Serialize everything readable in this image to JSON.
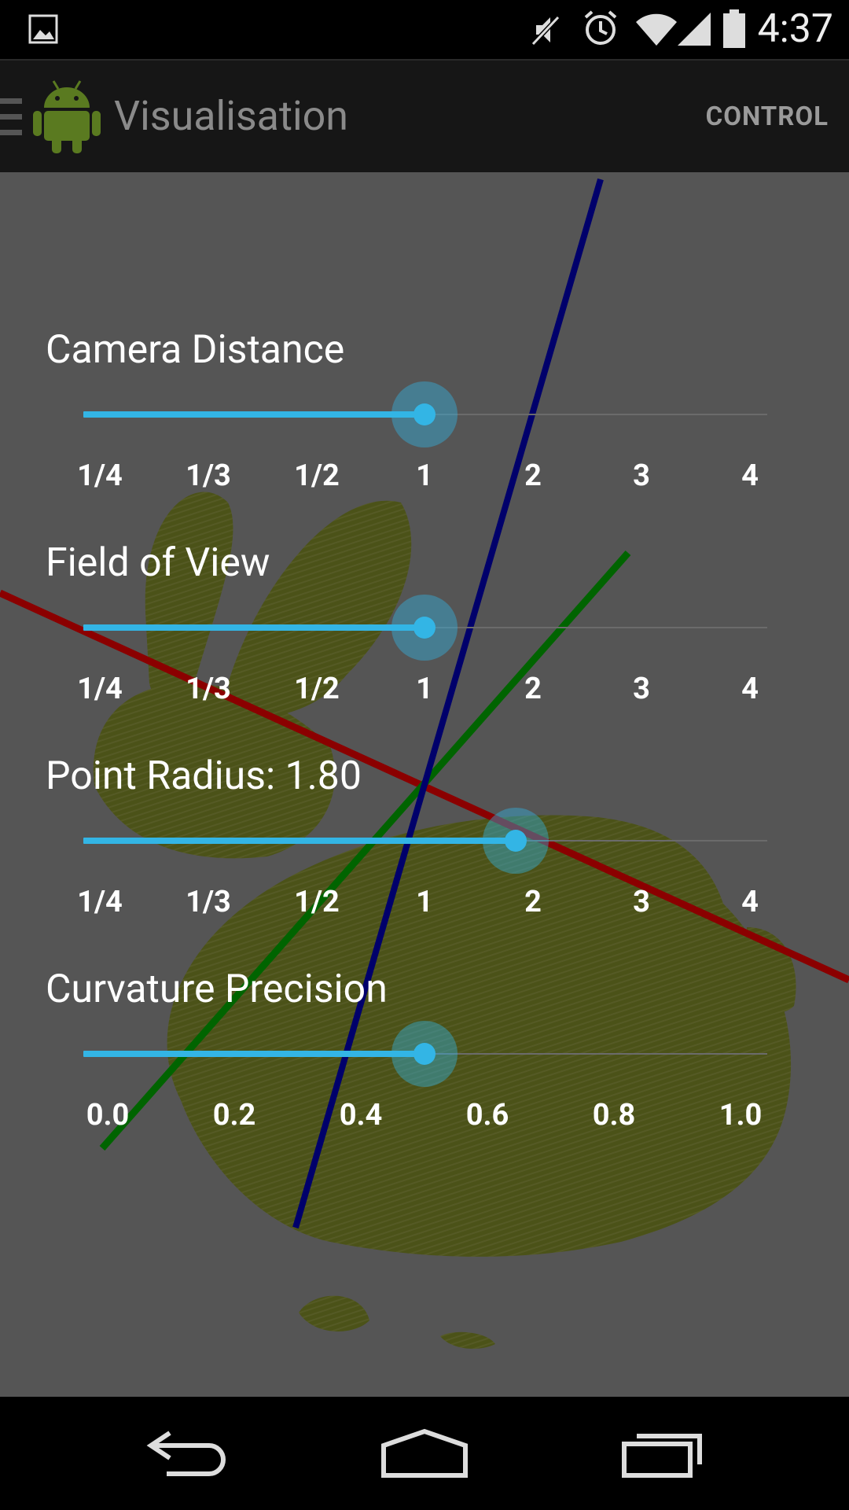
{
  "status_bar": {
    "time": "4:37",
    "icons": [
      "image-notification-icon",
      "mute-icon",
      "alarm-icon",
      "wifi-icon",
      "signal-icon",
      "battery-icon"
    ]
  },
  "action_bar": {
    "title": "Visualisation",
    "control_label": "CONTROL",
    "icons": [
      "drawer-indicator-icon",
      "android-robot-icon"
    ]
  },
  "scene": {
    "axis_colors": {
      "x": "#8b0000",
      "y": "#006400",
      "z": "#00006b"
    },
    "point_cloud_color": "#4b5218",
    "object": "rabbit point cloud"
  },
  "controls": {
    "camera_distance": {
      "label": "Camera Distance",
      "ticks": [
        "1/4",
        "1/3",
        "1/2",
        "1",
        "2",
        "3",
        "4"
      ],
      "value_index": 3
    },
    "field_of_view": {
      "label": "Field of View",
      "ticks": [
        "1/4",
        "1/3",
        "1/2",
        "1",
        "2",
        "3",
        "4"
      ],
      "value_index": 3
    },
    "point_radius": {
      "label": "Point Radius: 1.80",
      "ticks": [
        "1/4",
        "1/3",
        "1/2",
        "1",
        "2",
        "3",
        "4"
      ],
      "value": 1.8
    },
    "curvature_precision": {
      "label": "Curvature Precision",
      "ticks": [
        "0.0",
        "0.2",
        "0.4",
        "0.6",
        "0.8",
        "1.0"
      ],
      "value": 0.5
    }
  },
  "colors": {
    "accent": "#33b5e5",
    "viz_background": "#555555",
    "action_bar": "#161616"
  },
  "nav_bar": {
    "icons": [
      "back-icon",
      "home-icon",
      "recent-apps-icon"
    ]
  }
}
